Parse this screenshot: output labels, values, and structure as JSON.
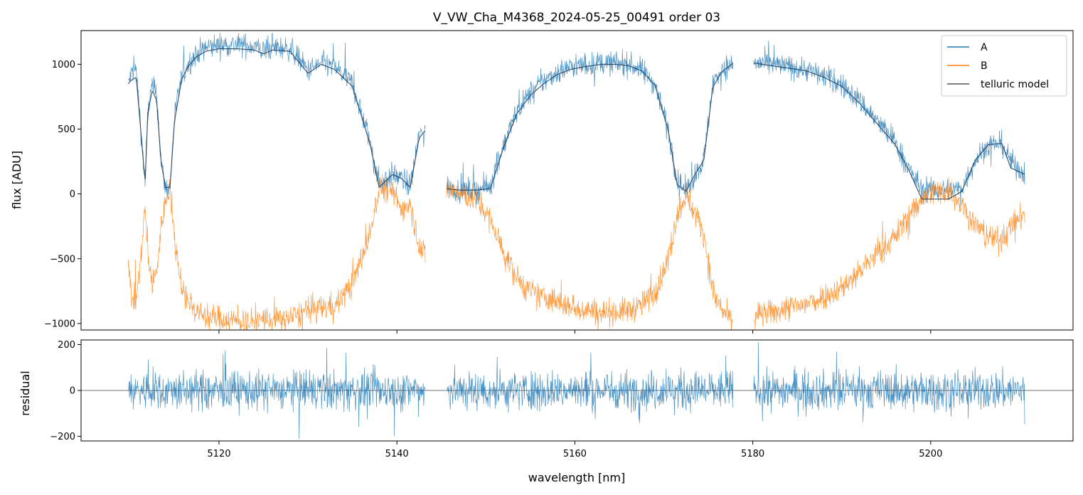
{
  "chart_data": [
    {
      "type": "line",
      "title": "V_VW_Cha_M4368_2024-05-25_00491  order 03",
      "xlabel": "",
      "ylabel": "flux [ADU]",
      "xlim": [
        5104.5,
        5216
      ],
      "ylim": [
        -1050,
        1260
      ],
      "yticks": [
        -1000,
        -500,
        0,
        500,
        1000
      ],
      "ytick_labels": [
        "−1000",
        "−500",
        "0",
        "500",
        "1000"
      ],
      "xticks": [
        5120,
        5140,
        5160,
        5180,
        5200
      ],
      "legend": {
        "position": "top-right",
        "entries": [
          {
            "label": "A",
            "color": "#1f77b4"
          },
          {
            "label": "B",
            "color": "#ff7f0e"
          },
          {
            "label": "telluric model",
            "color": "#555555"
          }
        ]
      },
      "segments": [
        [
          5109.8,
          5143.2
        ],
        [
          5145.6,
          5177.8
        ],
        [
          5180.1,
          5210.6
        ]
      ],
      "series": [
        {
          "name": "A",
          "color": "#1f77b4",
          "noise": 85,
          "x": [
            5109.8,
            5110.2,
            5110.7,
            5111.2,
            5111.7,
            5112.0,
            5112.5,
            5113.0,
            5113.5,
            5114.0,
            5114.5,
            5115.0,
            5115.8,
            5116.5,
            5117.5,
            5118.5,
            5120.0,
            5122.0,
            5124.0,
            5125.0,
            5126.0,
            5128.0,
            5130.0,
            5131.5,
            5133.0,
            5135.0,
            5137.0,
            5138.0,
            5139.5,
            5140.5,
            5141.5,
            5142.5,
            5143.2,
            5145.6,
            5147.0,
            5149.0,
            5150.5,
            5152.0,
            5153.5,
            5155.0,
            5156.5,
            5158.0,
            5159.5,
            5161.0,
            5162.0,
            5163.0,
            5164.5,
            5166.0,
            5167.5,
            5169.0,
            5170.5,
            5171.5,
            5172.5,
            5173.5,
            5174.5,
            5175.5,
            5176.5,
            5177.8,
            5180.1,
            5182.0,
            5184.0,
            5186.0,
            5188.0,
            5190.0,
            5192.0,
            5194.0,
            5196.0,
            5197.5,
            5199.0,
            5200.5,
            5202.0,
            5203.5,
            5205.0,
            5206.5,
            5208.0,
            5209.0,
            5210.6
          ],
          "y": [
            850,
            940,
            960,
            520,
            80,
            650,
            830,
            760,
            240,
            40,
            50,
            600,
            900,
            1000,
            1080,
            1130,
            1150,
            1150,
            1140,
            1100,
            1130,
            1120,
            950,
            1010,
            980,
            850,
            400,
            80,
            150,
            120,
            60,
            450,
            500,
            50,
            30,
            30,
            60,
            380,
            640,
            780,
            870,
            940,
            980,
            990,
            1000,
            1010,
            1010,
            1000,
            960,
            850,
            500,
            100,
            20,
            150,
            260,
            850,
            960,
            1000,
            1010,
            1000,
            980,
            960,
            910,
            840,
            720,
            560,
            400,
            200,
            30,
            30,
            30,
            40,
            260,
            380,
            390,
            250,
            150
          ]
        },
        {
          "name": "telluric model",
          "color": "#1f3c5a",
          "noise": 0,
          "x": [
            5109.8,
            5110.2,
            5110.7,
            5111.2,
            5111.7,
            5112.0,
            5112.5,
            5113.0,
            5113.5,
            5114.0,
            5114.5,
            5115.0,
            5115.8,
            5116.5,
            5117.5,
            5118.5,
            5120.0,
            5122.0,
            5124.0,
            5125.0,
            5126.0,
            5128.0,
            5130.0,
            5131.5,
            5133.0,
            5135.0,
            5137.0,
            5138.0,
            5139.5,
            5140.5,
            5141.5,
            5142.5,
            5143.2,
            5145.6,
            5147.0,
            5149.0,
            5150.5,
            5152.0,
            5153.5,
            5155.0,
            5156.5,
            5158.0,
            5159.5,
            5161.0,
            5162.0,
            5163.0,
            5164.5,
            5166.0,
            5167.5,
            5169.0,
            5170.5,
            5171.5,
            5172.5,
            5173.5,
            5174.5,
            5175.5,
            5176.5,
            5177.8,
            5180.1,
            5182.0,
            5184.0,
            5186.0,
            5188.0,
            5190.0,
            5192.0,
            5194.0,
            5196.0,
            5197.5,
            5199.0,
            5200.5,
            5202.0,
            5203.5,
            5205.0,
            5206.5,
            5208.0,
            5209.0,
            5210.6
          ],
          "y": [
            850,
            880,
            900,
            500,
            80,
            620,
            800,
            720,
            240,
            50,
            50,
            560,
            880,
            980,
            1060,
            1100,
            1120,
            1120,
            1110,
            1080,
            1110,
            1100,
            930,
            1000,
            960,
            830,
            380,
            50,
            150,
            120,
            50,
            430,
            490,
            40,
            30,
            30,
            40,
            360,
            620,
            760,
            850,
            920,
            960,
            980,
            990,
            1000,
            1000,
            990,
            950,
            840,
            490,
            70,
            20,
            150,
            260,
            820,
            940,
            1010,
            1010,
            990,
            970,
            950,
            900,
            830,
            700,
            540,
            380,
            190,
            -40,
            -40,
            -40,
            20,
            260,
            380,
            390,
            200,
            150
          ]
        },
        {
          "name": "B",
          "color": "#ff7f0e",
          "noise": 95,
          "x": [
            5109.8,
            5110.2,
            5110.7,
            5111.2,
            5111.7,
            5112.0,
            5112.5,
            5113.0,
            5113.5,
            5114.0,
            5114.5,
            5115.0,
            5115.8,
            5116.5,
            5117.5,
            5118.5,
            5120.0,
            5122.0,
            5124.0,
            5125.0,
            5126.0,
            5128.0,
            5130.0,
            5131.5,
            5133.0,
            5135.0,
            5137.0,
            5138.0,
            5139.5,
            5140.5,
            5141.5,
            5142.5,
            5143.2,
            5145.6,
            5147.0,
            5149.0,
            5150.5,
            5152.0,
            5153.5,
            5155.0,
            5156.5,
            5158.0,
            5159.5,
            5161.0,
            5162.0,
            5163.0,
            5164.5,
            5166.0,
            5167.5,
            5169.0,
            5170.5,
            5171.5,
            5172.5,
            5173.5,
            5174.5,
            5175.5,
            5176.5,
            5177.8,
            5180.1,
            5182.0,
            5184.0,
            5186.0,
            5188.0,
            5190.0,
            5192.0,
            5194.0,
            5196.0,
            5197.5,
            5199.0,
            5200.5,
            5202.0,
            5203.5,
            5205.0,
            5206.5,
            5208.0,
            5209.0,
            5210.6
          ],
          "y": [
            -550,
            -800,
            -820,
            -500,
            -100,
            -500,
            -700,
            -600,
            -250,
            -50,
            50,
            -350,
            -700,
            -820,
            -900,
            -950,
            -960,
            -980,
            -990,
            -960,
            -980,
            -960,
            -900,
            -880,
            -860,
            -700,
            -300,
            50,
            20,
            -120,
            -60,
            -400,
            -480,
            50,
            0,
            -50,
            -200,
            -450,
            -650,
            -760,
            -800,
            -830,
            -870,
            -890,
            -900,
            -910,
            -910,
            -900,
            -860,
            -760,
            -500,
            -150,
            0,
            -150,
            -300,
            -750,
            -900,
            -980,
            -950,
            -920,
            -880,
            -850,
            -790,
            -720,
            -600,
            -460,
            -330,
            -170,
            -30,
            20,
            30,
            -80,
            -240,
            -330,
            -360,
            -250,
            -150
          ]
        }
      ]
    },
    {
      "type": "line",
      "title": "",
      "xlabel": "wavelength [nm]",
      "ylabel": "residual",
      "xlim": [
        5104.5,
        5216
      ],
      "ylim": [
        -220,
        220
      ],
      "yticks": [
        -200,
        0,
        200
      ],
      "ytick_labels": [
        "−200",
        "0",
        "200"
      ],
      "xticks": [
        5120,
        5140,
        5160,
        5180,
        5200
      ],
      "xtick_labels": [
        "5120",
        "5140",
        "5160",
        "5180",
        "5200"
      ],
      "segments": [
        [
          5109.8,
          5143.2
        ],
        [
          5145.6,
          5177.8
        ],
        [
          5180.1,
          5210.6
        ]
      ],
      "series": [
        {
          "name": "residual",
          "color": "#1f77b4",
          "noise": 80,
          "x": [
            5109.8,
            5210.6
          ],
          "y": [
            0,
            0
          ]
        }
      ],
      "reference_line": {
        "y": 0,
        "color": "#444444"
      }
    }
  ]
}
